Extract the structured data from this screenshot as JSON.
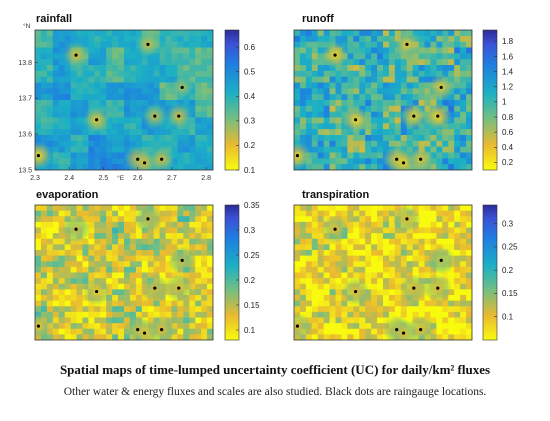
{
  "caption": {
    "title": "Spatial maps of time-lumped uncertainty coefficient (UC) for daily/km² fluxes",
    "note": "Other water & energy fluxes and scales are also studied. Black dots are raingauge locations."
  },
  "colors": {
    "low": "#f9e21c",
    "mid": "#2cb8b5",
    "high": "#2f2fa6",
    "dot": "#000000"
  },
  "chart_data": [
    {
      "type": "heatmap",
      "title": "rainfall",
      "ylabel": "°N",
      "xlabel": "°E",
      "x_ticks": [
        "2.3",
        "2.4",
        "2.5",
        "2.6",
        "2.7",
        "2.8"
      ],
      "y_ticks": [
        "13.5",
        "13.6",
        "13.7",
        "13.8"
      ],
      "xlim": [
        2.3,
        2.82
      ],
      "ylim": [
        13.5,
        13.89
      ],
      "colorbar": {
        "min": 0.1,
        "max": 0.67,
        "ticks": [
          0.1,
          0.2,
          0.3,
          0.4,
          0.5,
          0.6
        ]
      },
      "background_level": 0.52,
      "gauges": [
        {
          "lon": 2.42,
          "lat": 13.82,
          "uc": 0.2
        },
        {
          "lon": 2.63,
          "lat": 13.85,
          "uc": 0.22
        },
        {
          "lon": 2.73,
          "lat": 13.73,
          "uc": 0.25
        },
        {
          "lon": 2.48,
          "lat": 13.64,
          "uc": 0.18
        },
        {
          "lon": 2.65,
          "lat": 13.65,
          "uc": 0.22
        },
        {
          "lon": 2.72,
          "lat": 13.65,
          "uc": 0.2
        },
        {
          "lon": 2.31,
          "lat": 13.54,
          "uc": 0.15
        },
        {
          "lon": 2.6,
          "lat": 13.53,
          "uc": 0.18
        },
        {
          "lon": 2.62,
          "lat": 13.52,
          "uc": 0.2
        },
        {
          "lon": 2.67,
          "lat": 13.53,
          "uc": 0.2
        }
      ]
    },
    {
      "type": "heatmap",
      "title": "runoff",
      "colorbar": {
        "min": 0.1,
        "max": 1.95,
        "ticks": [
          0.2,
          0.4,
          0.6,
          0.8,
          1,
          1.2,
          1.4,
          1.6,
          1.8
        ]
      },
      "background_level": 0.5,
      "gauges": [
        {
          "lon": 2.42,
          "lat": 13.82,
          "uc": 0.3
        },
        {
          "lon": 2.63,
          "lat": 13.85,
          "uc": 0.35
        },
        {
          "lon": 2.73,
          "lat": 13.73,
          "uc": 0.35
        },
        {
          "lon": 2.48,
          "lat": 13.64,
          "uc": 0.25
        },
        {
          "lon": 2.65,
          "lat": 13.65,
          "uc": 0.3
        },
        {
          "lon": 2.72,
          "lat": 13.65,
          "uc": 0.25
        },
        {
          "lon": 2.31,
          "lat": 13.54,
          "uc": 0.3
        },
        {
          "lon": 2.6,
          "lat": 13.53,
          "uc": 0.3
        },
        {
          "lon": 2.62,
          "lat": 13.52,
          "uc": 0.3
        },
        {
          "lon": 2.67,
          "lat": 13.53,
          "uc": 0.35
        }
      ]
    },
    {
      "type": "heatmap",
      "title": "evaporation",
      "colorbar": {
        "min": 0.08,
        "max": 0.35,
        "ticks": [
          0.1,
          0.15,
          0.2,
          0.25,
          0.3,
          0.35
        ]
      },
      "background_level": 0.2,
      "gauges": [
        {
          "lon": 2.42,
          "lat": 13.82,
          "uc": 0.14
        },
        {
          "lon": 2.63,
          "lat": 13.85,
          "uc": 0.14
        },
        {
          "lon": 2.73,
          "lat": 13.73,
          "uc": 0.14
        },
        {
          "lon": 2.48,
          "lat": 13.64,
          "uc": 0.12
        },
        {
          "lon": 2.65,
          "lat": 13.65,
          "uc": 0.13
        },
        {
          "lon": 2.72,
          "lat": 13.65,
          "uc": 0.13
        },
        {
          "lon": 2.31,
          "lat": 13.54,
          "uc": 0.12
        },
        {
          "lon": 2.6,
          "lat": 13.53,
          "uc": 0.12
        },
        {
          "lon": 2.62,
          "lat": 13.52,
          "uc": 0.12
        },
        {
          "lon": 2.67,
          "lat": 13.53,
          "uc": 0.13
        }
      ]
    },
    {
      "type": "heatmap",
      "title": "transpiration",
      "colorbar": {
        "min": 0.05,
        "max": 0.34,
        "ticks": [
          0.1,
          0.15,
          0.2,
          0.25,
          0.3
        ]
      },
      "background_level": 0.14,
      "gauges": [
        {
          "lon": 2.42,
          "lat": 13.82,
          "uc": 0.1
        },
        {
          "lon": 2.63,
          "lat": 13.85,
          "uc": 0.1
        },
        {
          "lon": 2.73,
          "lat": 13.73,
          "uc": 0.12
        },
        {
          "lon": 2.48,
          "lat": 13.64,
          "uc": 0.1
        },
        {
          "lon": 2.65,
          "lat": 13.65,
          "uc": 0.1
        },
        {
          "lon": 2.72,
          "lat": 13.65,
          "uc": 0.1
        },
        {
          "lon": 2.31,
          "lat": 13.54,
          "uc": 0.1
        },
        {
          "lon": 2.6,
          "lat": 13.53,
          "uc": 0.1
        },
        {
          "lon": 2.62,
          "lat": 13.52,
          "uc": 0.1
        },
        {
          "lon": 2.67,
          "lat": 13.53,
          "uc": 0.1
        }
      ]
    }
  ]
}
